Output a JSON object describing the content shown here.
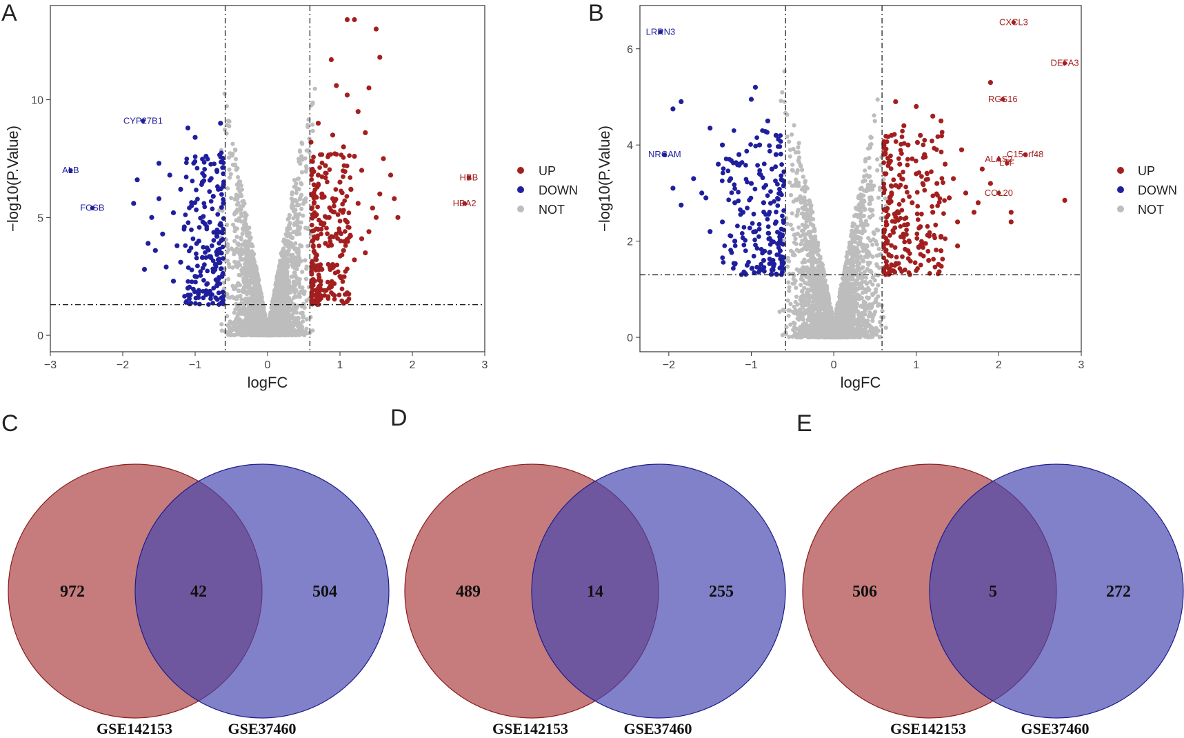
{
  "colors": {
    "up": "#a31f1f",
    "down": "#1f1f9e",
    "not": "#bdbdbd",
    "venn_left": "#b04a4a",
    "venn_right": "#4545b0",
    "venn_overlap": "#5a2a7a"
  },
  "legend": {
    "items": [
      "UP",
      "DOWN",
      "NOT"
    ],
    "placement": "right"
  },
  "chart_data": [
    {
      "panel": "A",
      "type": "scatter",
      "xlabel": "logFC",
      "ylabel": "−log10(P.Value)",
      "xlim": [
        -3,
        3
      ],
      "ylim": [
        -0.7,
        14
      ],
      "xticks": [
        "−3",
        "−2",
        "−1",
        "0",
        "1",
        "2",
        "3"
      ],
      "xtick_values": [
        -3,
        -2,
        -1,
        0,
        1,
        2,
        3
      ],
      "yticks": [
        "0",
        "5",
        "10"
      ],
      "ytick_values": [
        0,
        5,
        10
      ],
      "thresholds": {
        "logfc": [
          -0.585,
          0.585
        ],
        "pvalue_line": 1.3
      },
      "up_points": [
        [
          1.1,
          13.4
        ],
        [
          1.2,
          13.4
        ],
        [
          1.5,
          13.0
        ],
        [
          1.55,
          11.8
        ],
        [
          0.88,
          11.7
        ],
        [
          1.4,
          10.5
        ],
        [
          1.1,
          10.2
        ],
        [
          0.7,
          9.0
        ],
        [
          0.9,
          8.5
        ],
        [
          1.05,
          8.0
        ],
        [
          1.2,
          7.6
        ],
        [
          0.8,
          7.2
        ],
        [
          1.3,
          7.0
        ],
        [
          0.7,
          6.8
        ],
        [
          1.0,
          6.5
        ],
        [
          1.15,
          6.2
        ],
        [
          0.75,
          6.0
        ],
        [
          0.9,
          5.8
        ],
        [
          1.25,
          5.6
        ],
        [
          1.45,
          5.4
        ],
        [
          0.65,
          5.2
        ],
        [
          0.85,
          5.0
        ],
        [
          1.1,
          4.8
        ],
        [
          0.7,
          4.5
        ],
        [
          0.95,
          4.3
        ],
        [
          1.3,
          4.1
        ],
        [
          0.8,
          3.9
        ],
        [
          1.05,
          3.6
        ],
        [
          0.68,
          3.4
        ],
        [
          1.2,
          3.2
        ],
        [
          0.9,
          3.0
        ],
        [
          0.75,
          2.8
        ],
        [
          1.0,
          2.5
        ],
        [
          0.65,
          2.3
        ],
        [
          0.85,
          2.0
        ],
        [
          1.1,
          1.8
        ],
        [
          0.7,
          1.6
        ],
        [
          1.7,
          6.8
        ],
        [
          1.75,
          5.8
        ],
        [
          1.8,
          5.0
        ],
        [
          1.6,
          7.5
        ],
        [
          1.35,
          8.6
        ],
        [
          1.25,
          9.5
        ],
        [
          0.95,
          10.6
        ],
        [
          0.6,
          8.2
        ],
        [
          0.62,
          4.0
        ],
        [
          1.55,
          6.0
        ],
        [
          1.5,
          5.0
        ],
        [
          1.4,
          4.4
        ],
        [
          1.35,
          3.5
        ]
      ],
      "down_points": [
        [
          -1.1,
          8.8
        ],
        [
          -0.65,
          9.0
        ],
        [
          -1.0,
          8.4
        ],
        [
          -1.5,
          7.3
        ],
        [
          -1.8,
          6.6
        ],
        [
          -0.7,
          7.0
        ],
        [
          -0.9,
          6.5
        ],
        [
          -1.2,
          6.2
        ],
        [
          -1.5,
          5.8
        ],
        [
          -0.75,
          5.9
        ],
        [
          -1.05,
          5.5
        ],
        [
          -1.3,
          5.2
        ],
        [
          -1.6,
          5.0
        ],
        [
          -0.8,
          4.8
        ],
        [
          -1.15,
          4.6
        ],
        [
          -1.45,
          4.3
        ],
        [
          -0.7,
          4.2
        ],
        [
          -0.95,
          4.0
        ],
        [
          -1.25,
          3.8
        ],
        [
          -1.55,
          3.6
        ],
        [
          -0.65,
          3.5
        ],
        [
          -0.9,
          3.3
        ],
        [
          -1.2,
          3.1
        ],
        [
          -1.4,
          2.9
        ],
        [
          -0.75,
          2.7
        ],
        [
          -1.0,
          2.5
        ],
        [
          -1.3,
          2.3
        ],
        [
          -0.7,
          2.1
        ],
        [
          -0.95,
          1.9
        ],
        [
          -1.1,
          1.7
        ],
        [
          -1.7,
          2.8
        ],
        [
          -1.65,
          3.9
        ],
        [
          -1.85,
          5.6
        ],
        [
          -1.35,
          6.8
        ],
        [
          -0.85,
          7.6
        ],
        [
          -0.68,
          6.2
        ],
        [
          -0.72,
          3.0
        ],
        [
          -1.1,
          2.0
        ]
      ],
      "labels": [
        {
          "text": "CYP27B1",
          "x": -1.72,
          "y": 9.1,
          "group": "down"
        },
        {
          "text": "ALB",
          "x": -2.72,
          "y": 7.0,
          "group": "down"
        },
        {
          "text": "FOSB",
          "x": -2.42,
          "y": 5.4,
          "group": "down"
        },
        {
          "text": "HBB",
          "x": 2.78,
          "y": 6.7,
          "group": "up"
        },
        {
          "text": "HBA2",
          "x": 2.72,
          "y": 5.6,
          "group": "up"
        }
      ]
    },
    {
      "panel": "B",
      "type": "scatter",
      "xlabel": "logFC",
      "ylabel": "−log10(P.Value)",
      "xlim": [
        -2.35,
        3.0
      ],
      "ylim": [
        -0.3,
        6.9
      ],
      "xticks": [
        "−2",
        "−1",
        "0",
        "1",
        "2",
        "3"
      ],
      "xtick_values": [
        -2,
        -1,
        0,
        1,
        2,
        3
      ],
      "yticks": [
        "0",
        "2",
        "4",
        "6"
      ],
      "ytick_values": [
        0,
        2,
        4,
        6
      ],
      "thresholds": {
        "logfc": [
          -0.585,
          0.585
        ],
        "pvalue_line": 1.3
      },
      "up_points": [
        [
          1.9,
          5.3
        ],
        [
          1.0,
          4.8
        ],
        [
          0.75,
          4.9
        ],
        [
          1.2,
          4.6
        ],
        [
          1.3,
          4.5
        ],
        [
          1.55,
          3.9
        ],
        [
          1.8,
          3.5
        ],
        [
          1.9,
          3.2
        ],
        [
          2.15,
          2.6
        ],
        [
          2.8,
          2.85
        ],
        [
          2.15,
          2.4
        ],
        [
          1.7,
          2.6
        ],
        [
          1.5,
          2.4
        ],
        [
          0.7,
          4.2
        ],
        [
          0.9,
          4.0
        ],
        [
          1.1,
          3.8
        ],
        [
          0.8,
          3.6
        ],
        [
          1.0,
          3.4
        ],
        [
          1.25,
          3.2
        ],
        [
          0.7,
          3.0
        ],
        [
          0.95,
          2.8
        ],
        [
          1.2,
          2.6
        ],
        [
          1.4,
          2.9
        ],
        [
          0.75,
          2.5
        ],
        [
          1.05,
          2.3
        ],
        [
          1.3,
          2.1
        ],
        [
          0.65,
          2.0
        ],
        [
          0.9,
          1.8
        ],
        [
          1.15,
          1.6
        ],
        [
          0.7,
          1.5
        ],
        [
          1.6,
          3.0
        ],
        [
          1.75,
          2.8
        ],
        [
          1.35,
          3.6
        ],
        [
          1.45,
          3.3
        ],
        [
          0.85,
          4.4
        ],
        [
          1.05,
          4.2
        ],
        [
          1.3,
          1.8
        ],
        [
          1.5,
          1.9
        ]
      ],
      "down_points": [
        [
          -0.95,
          5.2
        ],
        [
          -1.0,
          4.95
        ],
        [
          -1.85,
          4.9
        ],
        [
          -1.95,
          4.75
        ],
        [
          -1.5,
          4.35
        ],
        [
          -1.35,
          4.0
        ],
        [
          -0.8,
          4.5
        ],
        [
          -0.7,
          4.2
        ],
        [
          -0.9,
          4.0
        ],
        [
          -1.15,
          3.8
        ],
        [
          -1.4,
          3.6
        ],
        [
          -1.7,
          3.3
        ],
        [
          -1.95,
          3.1
        ],
        [
          -1.55,
          2.9
        ],
        [
          -1.85,
          2.75
        ],
        [
          -1.25,
          3.3
        ],
        [
          -0.75,
          3.5
        ],
        [
          -1.0,
          3.2
        ],
        [
          -0.65,
          3.0
        ],
        [
          -0.85,
          2.8
        ],
        [
          -1.1,
          2.6
        ],
        [
          -1.35,
          2.4
        ],
        [
          -0.7,
          2.4
        ],
        [
          -0.95,
          2.2
        ],
        [
          -1.2,
          2.0
        ],
        [
          -0.65,
          1.8
        ],
        [
          -0.85,
          1.6
        ],
        [
          -1.05,
          1.5
        ],
        [
          -0.75,
          1.4
        ],
        [
          -1.5,
          2.2
        ],
        [
          -1.6,
          3.0
        ],
        [
          -0.7,
          3.8
        ],
        [
          -0.9,
          3.4
        ],
        [
          -1.2,
          2.8
        ]
      ],
      "labels": [
        {
          "text": "LRRN3",
          "x": -2.1,
          "y": 6.35,
          "group": "down"
        },
        {
          "text": "NRCAM",
          "x": -2.05,
          "y": 3.8,
          "group": "down"
        },
        {
          "text": "CXCL3",
          "x": 2.18,
          "y": 6.55,
          "group": "up"
        },
        {
          "text": "DEFA3",
          "x": 2.8,
          "y": 5.7,
          "group": "up"
        },
        {
          "text": "RGS16",
          "x": 2.05,
          "y": 4.95,
          "group": "up"
        },
        {
          "text": "C15orf48",
          "x": 2.32,
          "y": 3.8,
          "group": "up"
        },
        {
          "text": "ALAS2",
          "x": 2.0,
          "y": 3.7,
          "group": "up"
        },
        {
          "text": "LTF",
          "x": 2.1,
          "y": 3.62,
          "group": "up"
        },
        {
          "text": "COL20",
          "x": 2.0,
          "y": 3.0,
          "group": "up"
        }
      ]
    },
    {
      "panel": "C",
      "type": "venn",
      "sets": [
        "GSE142153",
        "GSE37460"
      ],
      "values": {
        "left_only": "972",
        "overlap": "42",
        "right_only": "504"
      }
    },
    {
      "panel": "D",
      "type": "venn",
      "sets": [
        "GSE142153",
        "GSE37460"
      ],
      "values": {
        "left_only": "489",
        "overlap": "14",
        "right_only": "255"
      }
    },
    {
      "panel": "E",
      "type": "venn",
      "sets": [
        "GSE142153",
        "GSE37460"
      ],
      "values": {
        "left_only": "506",
        "overlap": "5",
        "right_only": "272"
      }
    }
  ]
}
